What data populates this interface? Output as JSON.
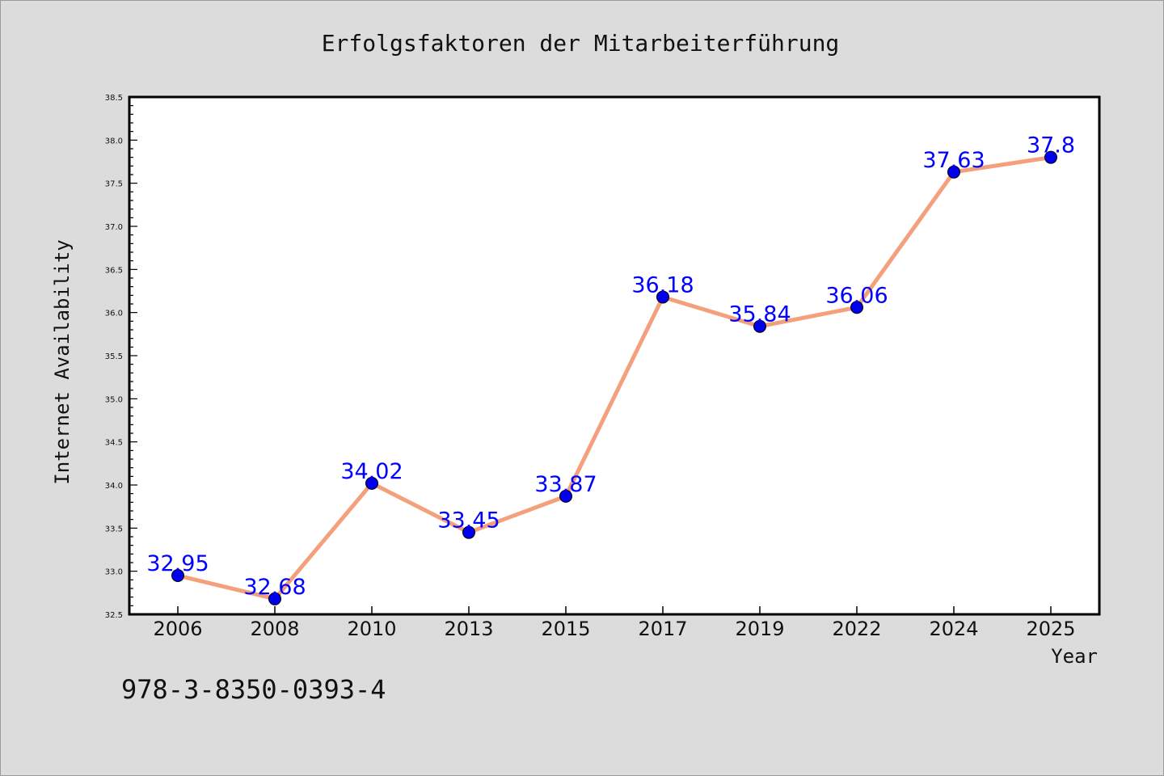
{
  "chart_data": {
    "type": "line",
    "title": "Erfolgsfaktoren der Mitarbeiterführung",
    "xlabel": "Year",
    "ylabel": "Internet Availability",
    "categories": [
      "2006",
      "2008",
      "2010",
      "2013",
      "2015",
      "2017",
      "2019",
      "2022",
      "2024",
      "2025"
    ],
    "series": [
      {
        "values": [
          32.95,
          32.68,
          34.02,
          33.45,
          33.87,
          36.18,
          35.84,
          36.06,
          37.63,
          37.8
        ],
        "labels": [
          "32.95",
          "32.68",
          "34.02",
          "33.45",
          "33.87",
          "36.18",
          "35.84",
          "36.06",
          "37.63",
          "37.8"
        ]
      }
    ],
    "ylim": [
      32.5,
      38.5
    ],
    "yticks": [
      "32.5",
      "33.0",
      "33.5",
      "34.0",
      "34.5",
      "35.0",
      "35.5",
      "36.0",
      "36.5",
      "37.0",
      "37.5",
      "38.0",
      "38.5"
    ],
    "grid": false,
    "legend": "none",
    "colors": {
      "line": "#f4a07c",
      "marker": "#0000ee",
      "data_label": "#0000ff",
      "plot_background": "#ffffff",
      "figure_background": "#dcdcdc"
    }
  },
  "footer": {
    "isbn": "978-3-8350-0393-4"
  }
}
